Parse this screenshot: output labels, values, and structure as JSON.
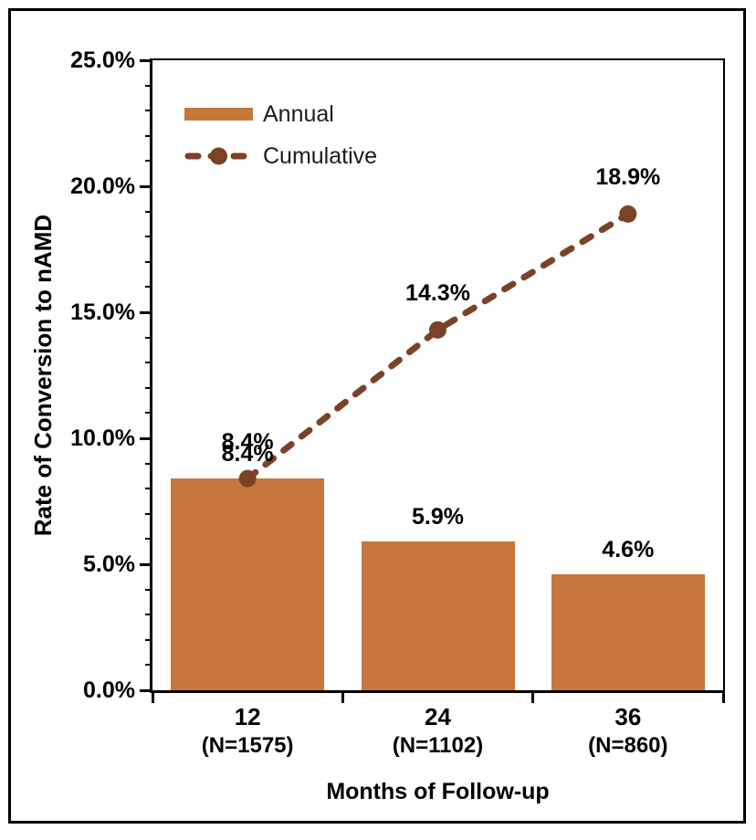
{
  "chart_data": {
    "type": "bar+line",
    "title": "",
    "xlabel": "Months of Follow-up",
    "ylabel": "Rate of Conversion to nAMD",
    "ylim": [
      0,
      25
    ],
    "y_major_tick_step": 5,
    "y_minor_tick_step": 1,
    "ytick_labels": [
      "0.0%",
      "5.0%",
      "10.0%",
      "15.0%",
      "20.0%",
      "25.0%"
    ],
    "categories": [
      "12",
      "24",
      "36"
    ],
    "category_sublabels": [
      "(N=1575)",
      "(N=1102)",
      "(N=860)"
    ],
    "series": [
      {
        "name": "Annual",
        "type": "bar",
        "color": "#C6783C",
        "values": [
          8.4,
          5.9,
          4.6
        ],
        "data_labels": [
          "8.4%",
          "5.9%",
          "4.6%"
        ]
      },
      {
        "name": "Cumulative",
        "type": "line",
        "line_style": "dashed",
        "marker": "circle",
        "color": "#7B4226",
        "values": [
          8.4,
          14.3,
          18.9
        ],
        "data_labels": [
          "8.4%",
          "14.3%",
          "18.9%"
        ]
      }
    ],
    "legend_position": "upper-left-inside",
    "grid": false,
    "frame_color": "#000000",
    "background_color": "#FFFFFF"
  }
}
